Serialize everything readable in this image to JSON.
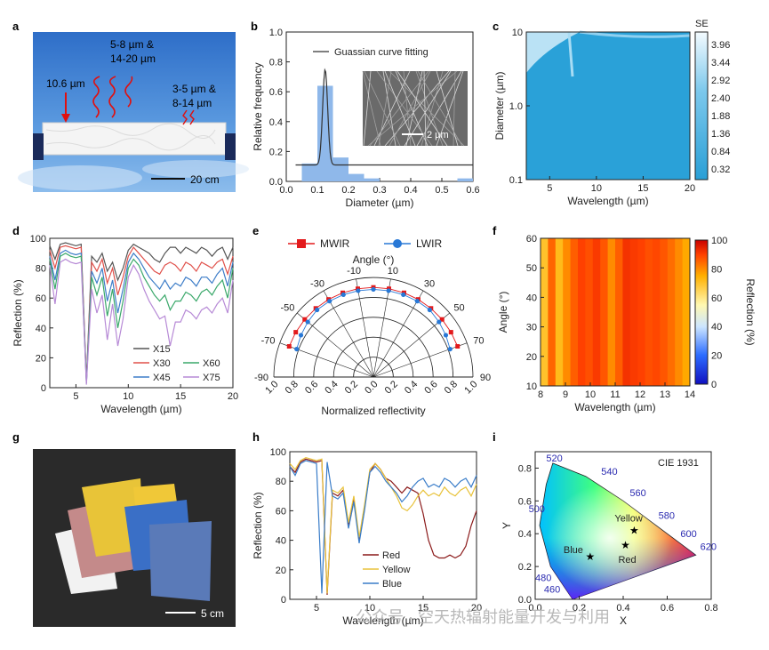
{
  "panels": {
    "a": {
      "label": "a",
      "ann_laser": "10.6 µm",
      "ann_mid1": "5-8 µm &",
      "ann_mid2": "14-20 µm",
      "ann_r1": "3-5 µm &",
      "ann_r2": "8-14 µm",
      "scale": "20 cm"
    },
    "g": {
      "label": "g",
      "scale": "5 cm"
    },
    "c": {
      "colorbar_title": "SE"
    }
  },
  "watermark": "公众号 · 空天热辐射能量开发与利用",
  "chart_data": [
    {
      "panel": "b",
      "type": "bar",
      "xlabel": "Diameter (µm)",
      "ylabel": "Relative frequency",
      "xlim": [
        0.0,
        0.6
      ],
      "ylim": [
        0.0,
        1.0
      ],
      "xticks": [
        "0.0",
        "0.1",
        "0.2",
        "0.3",
        "0.4",
        "0.5",
        "0.6"
      ],
      "yticks": [
        "0.0",
        "0.2",
        "0.4",
        "0.6",
        "0.8",
        "1.0"
      ],
      "bins": [
        0.075,
        0.125,
        0.175,
        0.225,
        0.275,
        0.575
      ],
      "values": [
        0.12,
        0.64,
        0.16,
        0.05,
        0.02,
        0.02
      ],
      "bar_width": 0.05,
      "legend": [
        "Guassian curve fitting"
      ],
      "fit": {
        "center": 0.125,
        "sigma": 0.008,
        "peak": 0.75,
        "baseline": 0.11
      },
      "inset_scale": "2 µm"
    },
    {
      "panel": "c",
      "type": "heatmap",
      "xlabel": "Wavelength (µm)",
      "ylabel": "Diameter (µm)",
      "xlim": [
        2.5,
        20
      ],
      "ylim": [
        0.1,
        10
      ],
      "yscale": "log",
      "xticks": [
        "5",
        "10",
        "15",
        "20"
      ],
      "yticks": [
        "0.1",
        "1.0",
        "10"
      ],
      "colorbar": [
        "3.96",
        "3.44",
        "2.92",
        "2.40",
        "1.88",
        "1.36",
        "0.84",
        "0.32"
      ]
    },
    {
      "panel": "d",
      "type": "line",
      "xlabel": "Wavelength (µm)",
      "ylabel": "Reflection (%)",
      "xlim": [
        2.5,
        20
      ],
      "ylim": [
        0,
        100
      ],
      "xticks": [
        "5",
        "10",
        "15",
        "20"
      ],
      "yticks": [
        "0",
        "20",
        "40",
        "60",
        "80",
        "100"
      ],
      "x": [
        2.5,
        3,
        3.5,
        4,
        4.5,
        5,
        5.5,
        6,
        6.5,
        7,
        7.5,
        8,
        8.5,
        9,
        9.5,
        10,
        10.5,
        11,
        11.5,
        12,
        12.5,
        13,
        13.5,
        14,
        14.5,
        15,
        15.5,
        16,
        16.5,
        17,
        17.5,
        18,
        18.5,
        19,
        19.5,
        20
      ],
      "series": [
        {
          "name": "X15",
          "color": "#555555",
          "values": [
            95,
            86,
            96,
            97,
            96,
            95,
            96,
            5,
            88,
            84,
            90,
            78,
            84,
            72,
            80,
            92,
            96,
            94,
            92,
            90,
            86,
            84,
            90,
            94,
            94,
            90,
            94,
            92,
            90,
            94,
            92,
            88,
            92,
            94,
            86,
            94
          ]
        },
        {
          "name": "X30",
          "color": "#e0504a",
          "values": [
            92,
            80,
            94,
            95,
            94,
            93,
            94,
            4,
            84,
            78,
            86,
            70,
            80,
            62,
            74,
            88,
            94,
            90,
            86,
            82,
            78,
            76,
            82,
            84,
            82,
            78,
            84,
            82,
            78,
            84,
            82,
            80,
            84,
            86,
            76,
            88
          ]
        },
        {
          "name": "X45",
          "color": "#3d7dc8",
          "values": [
            88,
            72,
            90,
            92,
            90,
            89,
            90,
            3,
            78,
            70,
            80,
            58,
            72,
            50,
            66,
            84,
            90,
            86,
            80,
            74,
            70,
            66,
            72,
            66,
            70,
            68,
            74,
            72,
            68,
            74,
            74,
            70,
            76,
            80,
            68,
            84
          ]
        },
        {
          "name": "X60",
          "color": "#3aa86a",
          "values": [
            86,
            66,
            88,
            90,
            88,
            87,
            88,
            3,
            74,
            62,
            74,
            48,
            66,
            40,
            58,
            80,
            86,
            82,
            74,
            68,
            62,
            58,
            62,
            52,
            58,
            58,
            64,
            62,
            58,
            64,
            66,
            62,
            68,
            72,
            60,
            80
          ]
        },
        {
          "name": "X75",
          "color": "#b78ad6",
          "values": [
            82,
            56,
            84,
            86,
            84,
            83,
            84,
            2,
            66,
            50,
            62,
            32,
            56,
            28,
            46,
            74,
            82,
            76,
            66,
            58,
            52,
            46,
            48,
            28,
            44,
            44,
            52,
            50,
            46,
            52,
            54,
            50,
            56,
            60,
            50,
            72
          ]
        }
      ]
    },
    {
      "panel": "e",
      "type": "polar",
      "xlabel": "Normalized reflectivity",
      "ylabel": "Angle (°)",
      "angle_ticks": [
        "-90",
        "-70",
        "-50",
        "-30",
        "-10",
        "10",
        "30",
        "50",
        "70",
        "90"
      ],
      "r_ticks": [
        "1.0",
        "0.8",
        "0.6",
        "0.4",
        "0.2",
        "0.0",
        "0.2",
        "0.4",
        "0.6",
        "0.8",
        "1.0"
      ],
      "angles": [
        -70,
        -60,
        -50,
        -40,
        -30,
        -20,
        -10,
        0,
        10,
        20,
        30,
        40,
        50,
        60,
        70
      ],
      "series": [
        {
          "name": "MWIR",
          "color": "#e31a1c",
          "marker": "square",
          "values": [
            0.9,
            0.9,
            0.9,
            0.9,
            0.9,
            0.9,
            0.9,
            0.9,
            0.9,
            0.9,
            0.9,
            0.9,
            0.9,
            0.9,
            0.9
          ]
        },
        {
          "name": "LWIR",
          "color": "#2878d6",
          "marker": "circle",
          "values": [
            0.82,
            0.84,
            0.86,
            0.88,
            0.88,
            0.88,
            0.88,
            0.88,
            0.88,
            0.88,
            0.88,
            0.88,
            0.86,
            0.84,
            0.82
          ]
        }
      ]
    },
    {
      "panel": "f",
      "type": "heatmap",
      "xlabel": "Wavelength (µm)",
      "ylabel": "Angle (°)",
      "xlim": [
        8,
        14
      ],
      "ylim": [
        10,
        60
      ],
      "xticks": [
        "8",
        "9",
        "10",
        "11",
        "12",
        "13",
        "14"
      ],
      "yticks": [
        "10",
        "20",
        "30",
        "40",
        "50",
        "60"
      ],
      "colorbar_label": "Reflection (%)",
      "colorbar": [
        "0",
        "20",
        "40",
        "60",
        "80",
        "100"
      ],
      "x": [
        8.0,
        8.3,
        8.6,
        8.9,
        9.2,
        9.5,
        9.8,
        10.1,
        10.4,
        10.7,
        11.0,
        11.3,
        11.6,
        11.9,
        12.2,
        12.5,
        12.8,
        13.1,
        13.4,
        13.7,
        14.0
      ],
      "values": [
        70,
        85,
        72,
        80,
        86,
        90,
        88,
        91,
        87,
        80,
        86,
        92,
        91,
        90,
        88,
        89,
        87,
        84,
        80,
        76,
        78
      ]
    },
    {
      "panel": "h",
      "type": "line",
      "xlabel": "Wavelength (µm)",
      "ylabel": "Reflection (%)",
      "xlim": [
        2.5,
        20
      ],
      "ylim": [
        0,
        100
      ],
      "xticks": [
        "5",
        "10",
        "15",
        "20"
      ],
      "yticks": [
        "0",
        "20",
        "40",
        "60",
        "80",
        "100"
      ],
      "x": [
        2.5,
        3,
        3.5,
        4,
        4.5,
        5,
        5.5,
        6,
        6.5,
        7,
        7.5,
        8,
        8.5,
        9,
        9.5,
        10,
        10.5,
        11,
        11.5,
        12,
        12.5,
        13,
        13.5,
        14,
        14.5,
        15,
        15.5,
        16,
        16.5,
        17,
        17.5,
        18,
        18.5,
        19,
        19.5,
        20
      ],
      "series": [
        {
          "name": "Red",
          "color": "#8b1a1a",
          "values": [
            90,
            86,
            93,
            95,
            94,
            93,
            94,
            3,
            72,
            70,
            74,
            50,
            68,
            40,
            62,
            86,
            92,
            88,
            82,
            80,
            76,
            72,
            76,
            74,
            72,
            58,
            40,
            30,
            28,
            28,
            30,
            28,
            30,
            36,
            50,
            60
          ]
        },
        {
          "name": "Yellow",
          "color": "#e8c23a",
          "values": [
            92,
            88,
            94,
            96,
            95,
            94,
            95,
            4,
            74,
            72,
            76,
            52,
            70,
            42,
            64,
            88,
            92,
            88,
            82,
            76,
            70,
            62,
            60,
            64,
            70,
            74,
            70,
            72,
            70,
            76,
            72,
            70,
            74,
            76,
            70,
            78
          ]
        },
        {
          "name": "Blue",
          "color": "#3a7dc9",
          "values": [
            90,
            84,
            92,
            94,
            93,
            92,
            4,
            93,
            70,
            68,
            72,
            48,
            66,
            38,
            60,
            86,
            90,
            86,
            80,
            76,
            72,
            66,
            70,
            76,
            80,
            82,
            76,
            78,
            76,
            82,
            80,
            76,
            80,
            82,
            76,
            84
          ]
        }
      ]
    },
    {
      "panel": "i",
      "type": "scatter",
      "title": "CIE 1931",
      "xlabel": "X",
      "ylabel": "Y",
      "xlim": [
        0.0,
        0.8
      ],
      "ylim": [
        0.0,
        0.9
      ],
      "xticks": [
        "0.0",
        "0.2",
        "0.4",
        "0.6",
        "0.8"
      ],
      "yticks": [
        "0.0",
        "0.2",
        "0.4",
        "0.6",
        "0.8"
      ],
      "locus_labels": [
        "520",
        "540",
        "560",
        "580",
        "600",
        "620",
        "500",
        "480",
        "460"
      ],
      "points": [
        {
          "name": "Yellow",
          "x": 0.45,
          "y": 0.42
        },
        {
          "name": "Blue",
          "x": 0.25,
          "y": 0.26
        },
        {
          "name": "Red",
          "x": 0.41,
          "y": 0.33
        }
      ]
    }
  ]
}
